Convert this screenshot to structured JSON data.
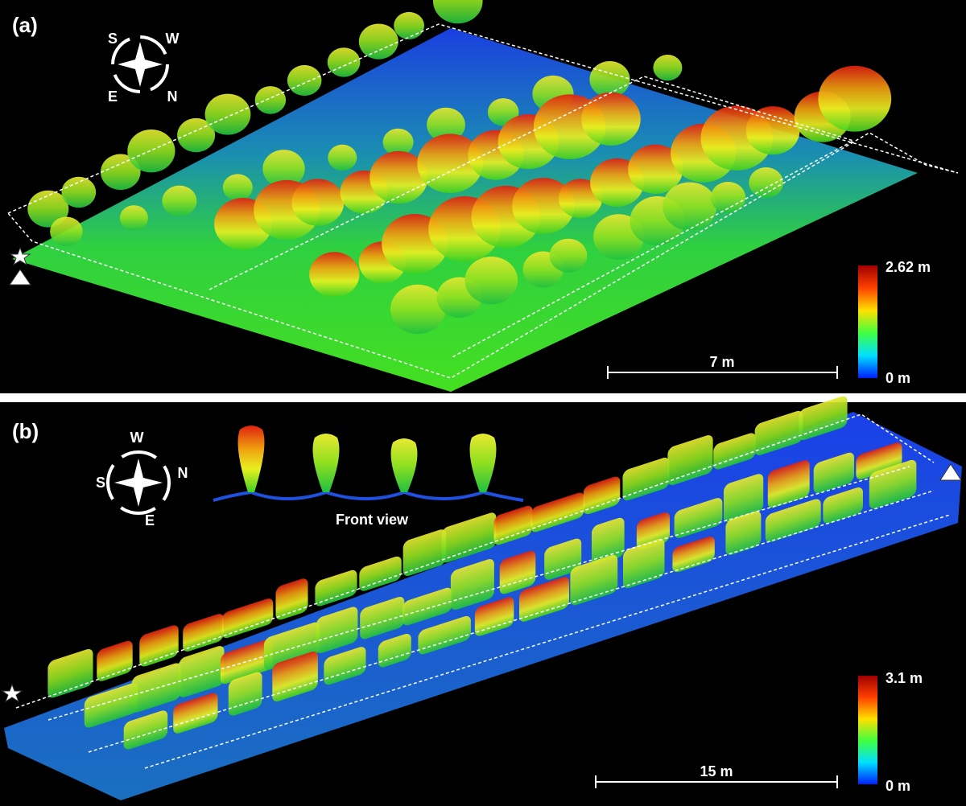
{
  "panels": [
    {
      "label": "(a)",
      "compass": {
        "top_left": "S",
        "top_right": "W",
        "bottom_left": "E",
        "bottom_right": "N"
      },
      "colorbar": {
        "max_label": "2.62 m",
        "min_label": "0 m"
      },
      "scale_bar": "7 m"
    },
    {
      "label": "(b)",
      "compass": {
        "top": "W",
        "right": "N",
        "left": "S",
        "bottom": "E"
      },
      "inset_caption": "Front view",
      "colorbar": {
        "max_label": "3.1 m",
        "min_label": "0 m"
      },
      "scale_bar": "15 m"
    }
  ]
}
